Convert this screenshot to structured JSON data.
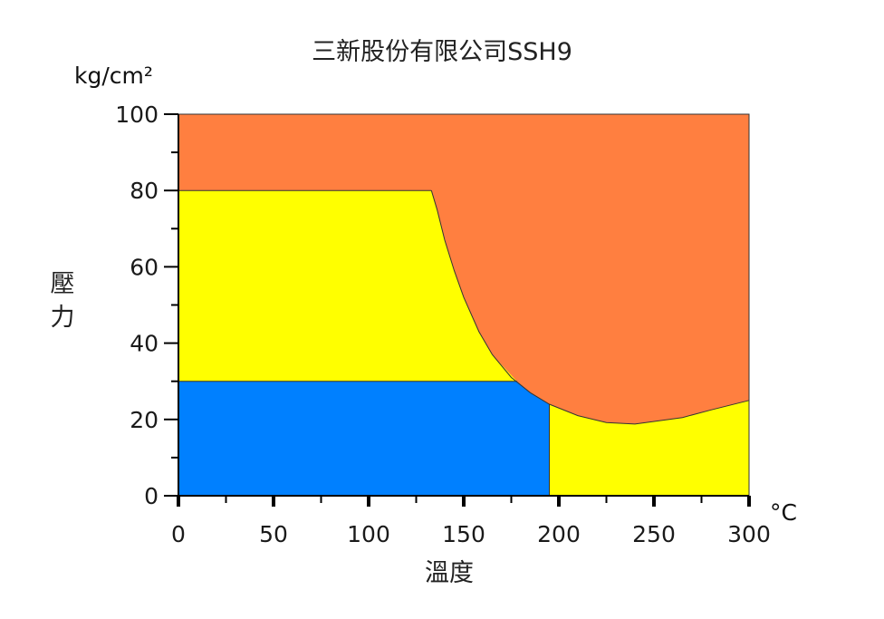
{
  "chart_data": {
    "type": "area",
    "title": "三新股份有限公司SSH9",
    "xlabel": "溫度",
    "ylabel": "壓力",
    "x_unit": "°C",
    "y_unit": "kg/cm²",
    "xlim": [
      0,
      300
    ],
    "ylim": [
      0,
      100
    ],
    "x_ticks": [
      "0",
      "50",
      "100",
      "150",
      "200",
      "250",
      "300"
    ],
    "y_ticks": [
      "0",
      "20",
      "40",
      "60",
      "80",
      "100"
    ],
    "grid": false,
    "colors": {
      "orange": "#FF7F40",
      "yellow": "#FFFF00",
      "blue": "#0080FF"
    },
    "regions": [
      {
        "color": "orange",
        "boundary": [
          [
            0,
            100
          ],
          [
            300,
            100
          ],
          [
            300,
            25
          ],
          [
            280,
            22.5
          ],
          [
            265,
            20.5
          ],
          [
            240,
            18.8
          ],
          [
            225,
            19.2
          ],
          [
            210,
            21
          ],
          [
            195,
            24
          ],
          [
            185,
            27
          ],
          [
            175,
            31
          ],
          [
            165,
            37
          ],
          [
            158,
            43
          ],
          [
            150,
            52
          ],
          [
            145,
            59
          ],
          [
            140,
            67
          ],
          [
            136,
            75
          ],
          [
            133,
            80
          ],
          [
            0,
            80
          ]
        ]
      },
      {
        "color": "yellow",
        "boundary": [
          [
            0,
            80
          ],
          [
            133,
            80
          ],
          [
            136,
            75
          ],
          [
            140,
            67
          ],
          [
            145,
            59
          ],
          [
            150,
            52
          ],
          [
            158,
            43
          ],
          [
            165,
            37
          ],
          [
            178,
            30
          ],
          [
            0,
            30
          ]
        ]
      },
      {
        "color": "blue",
        "boundary": [
          [
            0,
            30
          ],
          [
            178,
            30
          ],
          [
            185,
            27
          ],
          [
            195,
            24
          ],
          [
            195,
            0
          ],
          [
            0,
            0
          ]
        ]
      },
      {
        "color": "yellow",
        "boundary": [
          [
            195,
            0
          ],
          [
            195,
            24
          ],
          [
            210,
            21
          ],
          [
            225,
            19.2
          ],
          [
            240,
            18.8
          ],
          [
            265,
            20.5
          ],
          [
            280,
            22.5
          ],
          [
            300,
            25
          ],
          [
            300,
            0
          ]
        ]
      }
    ]
  }
}
